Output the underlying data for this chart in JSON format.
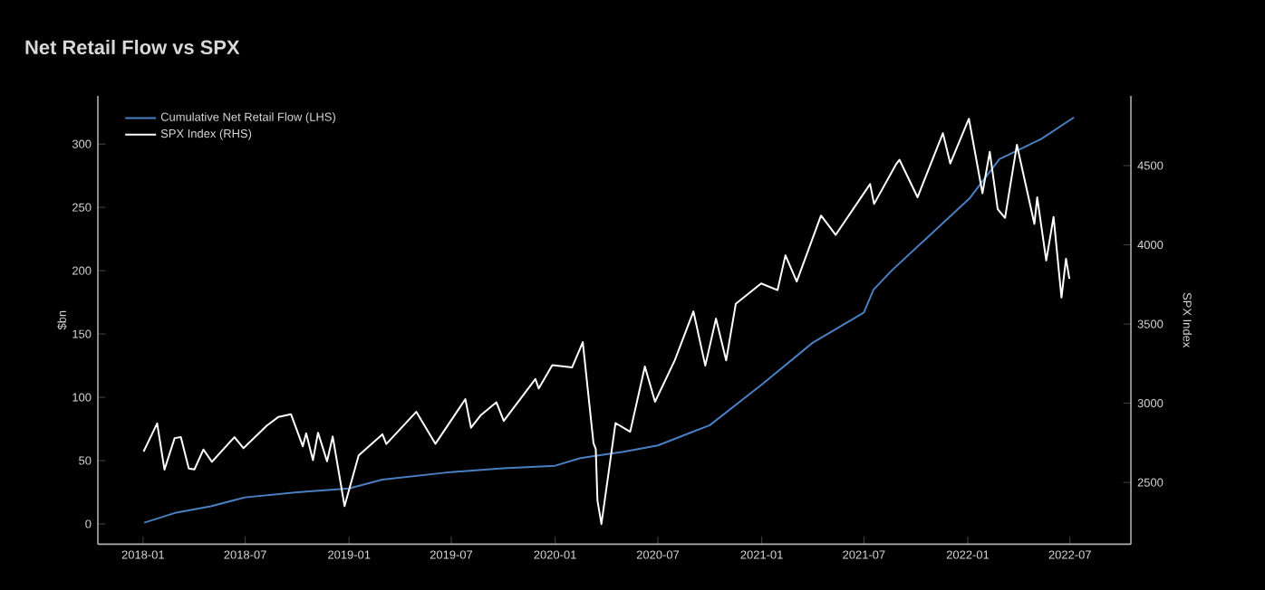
{
  "chart_data": {
    "type": "line",
    "title": "Net Retail Flow vs SPX",
    "ylabel": "$bn",
    "y2label": "SPX Index",
    "legend": "top left",
    "marker": "none",
    "line_style": "solid",
    "xlim": [
      "2017-10-13",
      "2022-10-17"
    ],
    "xticks": [
      {
        "value": "2018-01",
        "label": "2018-01"
      },
      {
        "value": "2018-07",
        "label": "2018-07"
      },
      {
        "value": "2019-01",
        "label": "2019-01"
      },
      {
        "value": "2019-07",
        "label": "2019-07"
      },
      {
        "value": "2020-01",
        "label": "2020-01"
      },
      {
        "value": "2020-07",
        "label": "2020-07"
      },
      {
        "value": "2021-01",
        "label": "2021-01"
      },
      {
        "value": "2021-07",
        "label": "2021-07"
      },
      {
        "value": "2022-01",
        "label": "2022-01"
      },
      {
        "value": "2022-07",
        "label": "2022-07"
      }
    ],
    "ylim": [
      -16,
      338
    ],
    "yticks": [
      0,
      50,
      100,
      150,
      200,
      250,
      300
    ],
    "y2lim": [
      2110,
      4940
    ],
    "y2ticks": [
      2500,
      3000,
      3500,
      4000,
      4500
    ],
    "series": [
      {
        "name": "Cumulative Net Retail Flow (LHS)",
        "color": "#4a7fc1",
        "x": [
          "2018-01-03",
          "2018-03-01",
          "2018-05-01",
          "2018-07-01",
          "2018-10-01",
          "2019-01-01",
          "2019-03-01",
          "2019-07-01",
          "2019-10-01",
          "2020-01-01",
          "2020-02-15",
          "2020-03-15",
          "2020-05-01",
          "2020-07-01",
          "2020-10-01",
          "2021-01-01",
          "2021-04-01",
          "2021-07-01",
          "2021-07-18",
          "2021-08-19",
          "2022-01-04",
          "2022-02-26",
          "2022-05-11",
          "2022-07-08"
        ],
        "values": [
          1,
          9,
          14,
          21,
          25,
          28,
          35,
          41,
          44,
          46,
          52,
          54,
          57,
          62,
          78,
          110,
          143,
          167,
          185,
          200,
          257,
          288,
          304,
          321
        ]
      },
      {
        "name": "SPX Index (RHS)",
        "color": "#ffffff",
        "axis": "y2",
        "x": [
          "2018-01-02",
          "2018-01-26",
          "2018-02-08",
          "2018-02-26",
          "2018-03-09",
          "2018-03-23",
          "2018-04-02",
          "2018-04-18",
          "2018-05-03",
          "2018-06-12",
          "2018-06-28",
          "2018-08-08",
          "2018-08-29",
          "2018-09-20",
          "2018-10-11",
          "2018-10-17",
          "2018-10-29",
          "2018-11-07",
          "2018-11-23",
          "2018-12-03",
          "2018-12-24",
          "2019-01-18",
          "2019-03-01",
          "2019-03-08",
          "2019-04-30",
          "2019-06-03",
          "2019-07-26",
          "2019-08-05",
          "2019-08-22",
          "2019-09-19",
          "2019-10-02",
          "2019-11-27",
          "2019-12-03",
          "2019-12-27",
          "2020-01-31",
          "2020-02-19",
          "2020-03-09",
          "2020-03-13",
          "2020-03-16",
          "2020-03-23",
          "2020-04-17",
          "2020-05-13",
          "2020-06-08",
          "2020-06-26",
          "2020-07-31",
          "2020-09-02",
          "2020-09-23",
          "2020-10-12",
          "2020-10-30",
          "2020-11-16",
          "2020-12-31",
          "2021-01-29",
          "2021-02-12",
          "2021-03-04",
          "2021-04-16",
          "2021-05-12",
          "2021-07-12",
          "2021-07-19",
          "2021-08-27",
          "2021-09-02",
          "2021-10-04",
          "2021-11-18",
          "2021-12-01",
          "2022-01-03",
          "2022-01-27",
          "2022-02-09",
          "2022-02-23",
          "2022-03-08",
          "2022-03-29",
          "2022-04-29",
          "2022-05-04",
          "2022-05-20",
          "2022-06-02",
          "2022-06-16",
          "2022-06-24",
          "2022-06-30"
        ],
        "values": [
          2695,
          2873,
          2581,
          2780,
          2786,
          2588,
          2582,
          2708,
          2630,
          2786,
          2716,
          2858,
          2914,
          2931,
          2728,
          2810,
          2641,
          2814,
          2633,
          2790,
          2351,
          2671,
          2804,
          2743,
          2946,
          2744,
          3026,
          2845,
          2923,
          3006,
          2888,
          3153,
          3093,
          3240,
          3226,
          3386,
          2747,
          2711,
          2386,
          2237,
          2875,
          2820,
          3232,
          3009,
          3271,
          3580,
          3237,
          3534,
          3270,
          3627,
          3756,
          3714,
          3934,
          3768,
          4185,
          4063,
          4384,
          4258,
          4509,
          4537,
          4300,
          4705,
          4513,
          4796,
          4326,
          4587,
          4225,
          4170,
          4631,
          4132,
          4300,
          3901,
          4176,
          3667,
          3912,
          3785
        ]
      }
    ]
  }
}
